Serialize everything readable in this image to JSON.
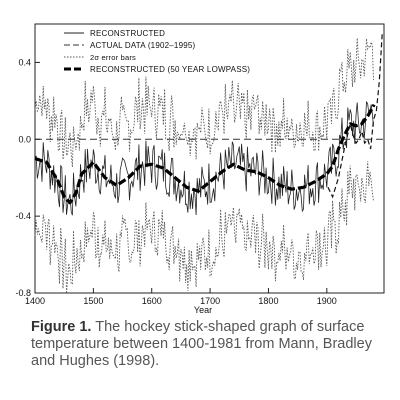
{
  "chart_data": {
    "type": "line",
    "xlabel": "Year",
    "ylabel": "",
    "xlim": [
      1400,
      1998
    ],
    "ylim": [
      -0.8,
      0.6
    ],
    "x_ticks": [
      {
        "value": 1400,
        "label": "1400"
      },
      {
        "value": 1500,
        "label": "1500"
      },
      {
        "value": 1600,
        "label": "1600"
      },
      {
        "value": 1700,
        "label": "1700"
      },
      {
        "value": 1800,
        "label": "1800"
      },
      {
        "value": 1900,
        "label": "1900"
      }
    ],
    "y_ticks": [
      {
        "value": 0.4,
        "label": "0.4"
      },
      {
        "value": 0.0,
        "label": "0.0"
      },
      {
        "value": -0.4,
        "label": "-0.4"
      },
      {
        "value": -0.8,
        "label": "-0.8"
      }
    ],
    "reference_line": {
      "y": 0.0,
      "style": "dashed"
    },
    "legend_position": "top-left",
    "legend": [
      {
        "label": "RECONSTRUCTED",
        "style": "thin-solid"
      },
      {
        "label": "ACTUAL DATA (1902–1995)",
        "style": "dashed"
      },
      {
        "label": "2σ error bars",
        "style": "dotted"
      },
      {
        "label": "RECONSTRUCTED (50 YEAR LOWPASS)",
        "style": "thick-dashed"
      }
    ],
    "series": [
      {
        "name": "RECONSTRUCTED (50 YEAR LOWPASS)",
        "x": [
          1400,
          1420,
          1440,
          1450,
          1460,
          1470,
          1480,
          1500,
          1520,
          1540,
          1560,
          1580,
          1600,
          1620,
          1640,
          1660,
          1680,
          1700,
          1720,
          1740,
          1760,
          1780,
          1800,
          1820,
          1840,
          1860,
          1880,
          1900,
          1910,
          1920,
          1930,
          1940,
          1950,
          1960,
          1970,
          1981
        ],
        "y": [
          -0.1,
          -0.12,
          -0.22,
          -0.3,
          -0.33,
          -0.28,
          -0.18,
          -0.12,
          -0.2,
          -0.24,
          -0.2,
          -0.14,
          -0.13,
          -0.15,
          -0.2,
          -0.25,
          -0.27,
          -0.22,
          -0.17,
          -0.13,
          -0.16,
          -0.17,
          -0.2,
          -0.24,
          -0.26,
          -0.25,
          -0.22,
          -0.18,
          -0.14,
          -0.05,
          0.02,
          0.08,
          0.07,
          0.08,
          0.12,
          0.18
        ]
      },
      {
        "name": "ACTUAL DATA (1902–1995)",
        "x": [
          1902,
          1910,
          1920,
          1930,
          1940,
          1945,
          1950,
          1955,
          1960,
          1965,
          1970,
          1975,
          1980,
          1985,
          1990,
          1995
        ],
        "y": [
          -0.25,
          -0.3,
          -0.2,
          -0.05,
          0.08,
          0.02,
          -0.02,
          0.0,
          0.04,
          -0.02,
          0.0,
          -0.05,
          0.1,
          0.15,
          0.3,
          0.55
        ]
      },
      {
        "name": "RECONSTRUCTED",
        "x": [
          1400,
          1420,
          1440,
          1450,
          1460,
          1470,
          1480,
          1500,
          1520,
          1540,
          1560,
          1580,
          1600,
          1620,
          1640,
          1660,
          1680,
          1700,
          1720,
          1740,
          1760,
          1780,
          1800,
          1820,
          1840,
          1860,
          1880,
          1900,
          1910,
          1920,
          1930,
          1940,
          1950,
          1960,
          1970,
          1981
        ],
        "y": [
          -0.1,
          -0.12,
          -0.22,
          -0.3,
          -0.33,
          -0.28,
          -0.18,
          -0.12,
          -0.2,
          -0.24,
          -0.2,
          -0.14,
          -0.13,
          -0.15,
          -0.2,
          -0.25,
          -0.27,
          -0.22,
          -0.17,
          -0.13,
          -0.16,
          -0.17,
          -0.2,
          -0.24,
          -0.26,
          -0.25,
          -0.22,
          -0.18,
          -0.14,
          -0.05,
          0.02,
          0.08,
          0.07,
          0.08,
          0.12,
          0.18
        ],
        "variability": 0.13
      },
      {
        "name": "2σ error bars",
        "upper_offset": 0.3,
        "lower_offset": -0.35
      }
    ]
  },
  "caption": {
    "label": "Figure 1.",
    "text": "The hockey stick-shaped graph of surface temperature between 1400-1981 from Mann, Bradley and Hughes (1998)."
  }
}
